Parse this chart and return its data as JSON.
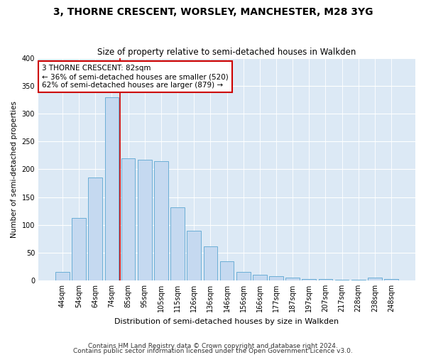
{
  "title": "3, THORNE CRESCENT, WORSLEY, MANCHESTER, M28 3YG",
  "subtitle": "Size of property relative to semi-detached houses in Walkden",
  "xlabel": "Distribution of semi-detached houses by size in Walkden",
  "ylabel": "Number of semi-detached properties",
  "footer_line1": "Contains HM Land Registry data © Crown copyright and database right 2024.",
  "footer_line2": "Contains public sector information licensed under the Open Government Licence v3.0.",
  "annotation_title": "3 THORNE CRESCENT: 82sqm",
  "annotation_line1": "← 36% of semi-detached houses are smaller (520)",
  "annotation_line2": "62% of semi-detached houses are larger (879) →",
  "bar_labels": [
    "44sqm",
    "54sqm",
    "64sqm",
    "74sqm",
    "85sqm",
    "95sqm",
    "105sqm",
    "115sqm",
    "126sqm",
    "136sqm",
    "146sqm",
    "156sqm",
    "166sqm",
    "177sqm",
    "187sqm",
    "197sqm",
    "207sqm",
    "217sqm",
    "228sqm",
    "238sqm",
    "248sqm"
  ],
  "bar_values": [
    15,
    113,
    185,
    330,
    220,
    217,
    215,
    131,
    90,
    61,
    35,
    15,
    10,
    7,
    5,
    3,
    2,
    1,
    1,
    5,
    3
  ],
  "bar_color": "#c5d9f0",
  "bar_edge_color": "#6baed6",
  "vline_color": "#cc0000",
  "annotation_box_color": "#cc0000",
  "fig_bg_color": "#ffffff",
  "plot_bg_color": "#dce9f5",
  "ylim": [
    0,
    400
  ],
  "yticks": [
    0,
    50,
    100,
    150,
    200,
    250,
    300,
    350,
    400
  ],
  "grid_color": "#ffffff",
  "title_fontsize": 10,
  "subtitle_fontsize": 8.5,
  "xlabel_fontsize": 8,
  "ylabel_fontsize": 7.5,
  "tick_fontsize": 7,
  "annotation_fontsize": 7.5,
  "footer_fontsize": 6.5
}
